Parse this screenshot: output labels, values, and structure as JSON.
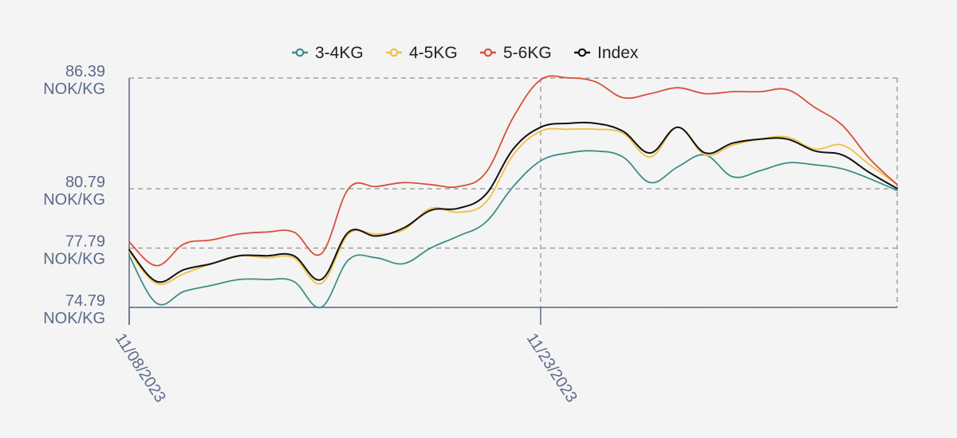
{
  "chart_data": {
    "type": "line",
    "title": "",
    "xlabel": "",
    "ylabel": "",
    "unit": "NOK/KG",
    "y_ticks": [
      74.79,
      77.79,
      80.79,
      86.39
    ],
    "y_tick_labels": [
      "74.79",
      "77.79",
      "80.79",
      "86.39"
    ],
    "ylim": [
      74.79,
      86.39
    ],
    "x_ticks": [
      "11/08/2023",
      "11/23/2023"
    ],
    "x_range": [
      "11/08/2023",
      "12/06/2023"
    ],
    "legend_position": "top-center",
    "grid": true,
    "x": [
      "11/08/2023",
      "11/09/2023",
      "11/10/2023",
      "11/11/2023",
      "11/12/2023",
      "11/13/2023",
      "11/14/2023",
      "11/15/2023",
      "11/16/2023",
      "11/17/2023",
      "11/18/2023",
      "11/19/2023",
      "11/20/2023",
      "11/21/2023",
      "11/22/2023",
      "11/23/2023",
      "11/24/2023",
      "11/25/2023",
      "11/26/2023",
      "11/27/2023",
      "11/28/2023",
      "11/29/2023",
      "11/30/2023",
      "12/01/2023",
      "12/02/2023",
      "12/03/2023",
      "12/04/2023",
      "12/05/2023",
      "12/06/2023"
    ],
    "series": [
      {
        "name": "3-4KG",
        "color": "#3a8f88",
        "values": [
          77.4,
          75.0,
          75.6,
          75.9,
          76.2,
          76.2,
          76.1,
          74.8,
          77.2,
          77.3,
          77.0,
          77.8,
          78.4,
          79.1,
          80.9,
          82.2,
          82.6,
          82.7,
          82.4,
          81.1,
          81.9,
          82.5,
          81.4,
          81.7,
          82.1,
          82.0,
          81.8,
          81.3,
          80.7
        ]
      },
      {
        "name": "4-5KG",
        "color": "#f0c043",
        "values": [
          77.6,
          76.0,
          76.5,
          77.0,
          77.4,
          77.3,
          77.3,
          76.0,
          78.5,
          78.5,
          78.7,
          79.8,
          79.6,
          80.1,
          82.5,
          83.7,
          83.8,
          83.8,
          83.6,
          82.4,
          83.9,
          82.5,
          83.0,
          83.3,
          83.4,
          82.8,
          83.0,
          82.0,
          81.0
        ]
      },
      {
        "name": "5-6KG",
        "color": "#d94f3b",
        "values": [
          78.1,
          76.9,
          78.0,
          78.2,
          78.5,
          78.6,
          78.6,
          77.5,
          80.8,
          80.9,
          81.1,
          81.0,
          80.9,
          81.6,
          84.4,
          86.3,
          86.4,
          86.2,
          85.4,
          85.6,
          85.9,
          85.6,
          85.7,
          85.7,
          85.8,
          84.9,
          84.0,
          82.3,
          81.0
        ]
      },
      {
        "name": "Index",
        "color": "#111111",
        "values": [
          77.7,
          76.1,
          76.7,
          77.0,
          77.4,
          77.4,
          77.4,
          76.2,
          78.6,
          78.4,
          78.8,
          79.7,
          79.8,
          80.5,
          82.8,
          83.9,
          84.1,
          84.1,
          83.7,
          82.6,
          83.9,
          82.6,
          83.1,
          83.3,
          83.3,
          82.7,
          82.5,
          81.6,
          80.8
        ]
      }
    ]
  }
}
